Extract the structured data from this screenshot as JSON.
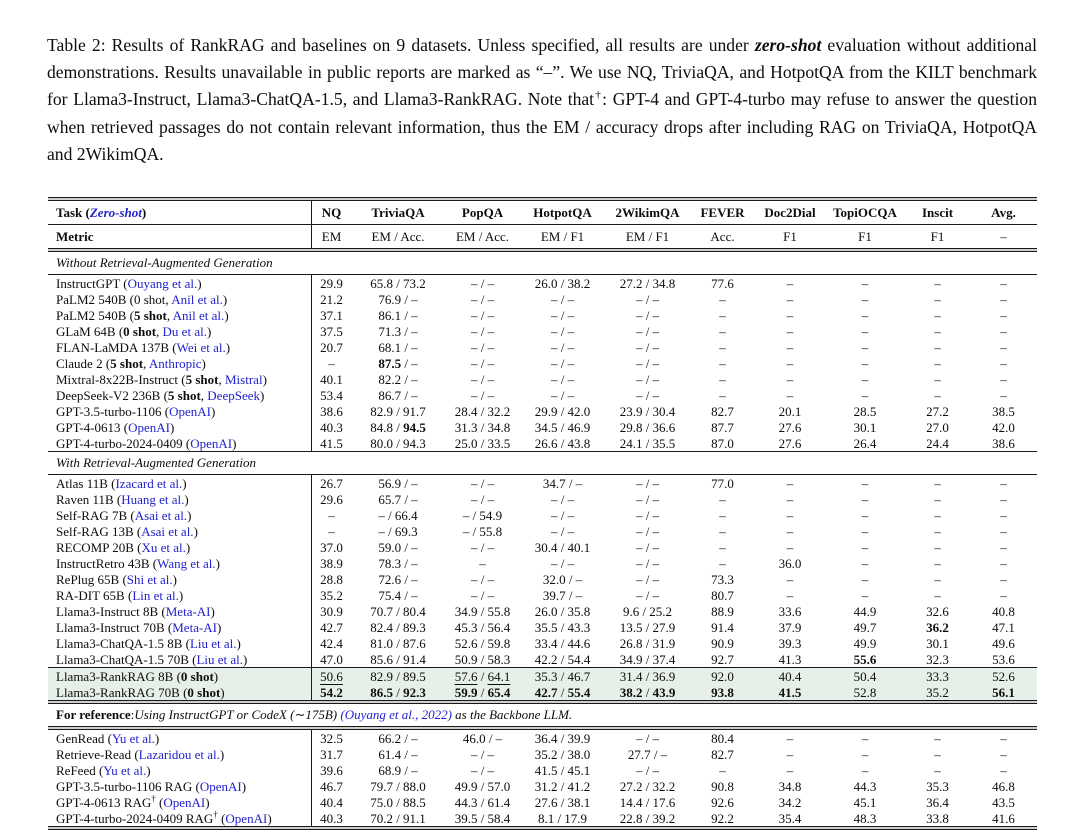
{
  "colors": {
    "citation_blue": "#2222cc",
    "highlight_green": "#e6efe8",
    "rule_black": "#1a1a1a"
  },
  "caption": {
    "segments": [
      {
        "text": "Table 2: Results of RankRAG and baselines on 9 datasets. Unless specified, all results are under ",
        "style": "normal"
      },
      {
        "text": "zero-shot",
        "style": "bolditalic"
      },
      {
        "text": " evaluation without additional demonstrations. Results unavailable in public reports are marked as “–”. We use NQ, TriviaQA, and HotpotQA from the KILT benchmark for Llama3-Instruct, Llama3-ChatQA-1.5, and Llama3-RankRAG. Note that",
        "style": "normal"
      },
      {
        "text": "†",
        "style": "sup"
      },
      {
        "text": ": GPT-4 and GPT-4-turbo may refuse to answer the question when retrieved passages do not contain relevant information, thus the EM / accuracy drops after including RAG on TriviaQA, HotpotQA and 2WikimQA.",
        "style": "normal"
      }
    ]
  },
  "table": {
    "header": {
      "task": "Task ([[//Zero-shot//]])",
      "cols": [
        "NQ",
        "TriviaQA",
        "PopQA",
        "HotpotQA",
        "2WikimQA",
        "FEVER",
        "Doc2Dial",
        "TopiOCQA",
        "Inscit",
        "Avg."
      ]
    },
    "metric": {
      "task": "Metric",
      "cols": [
        "EM",
        "EM / Acc.",
        "EM / Acc.",
        "EM / F1",
        "EM / F1",
        "Acc.",
        "F1",
        "F1",
        "F1",
        "–"
      ]
    },
    "groups": [
      {
        "band": "//Without Retrieval-Augmented Generation//",
        "band_rule_below": "thin",
        "highlight": false,
        "rows_rule_below": "thin",
        "rows": [
          {
            "model": "InstructGPT ([[Ouyang et al.]])",
            "cells": [
              "29.9",
              "65.8 / 73.2",
              "– / –",
              "26.0 / 38.2",
              "27.2 / 34.8",
              "77.6",
              "–",
              "–",
              "–",
              "–"
            ]
          },
          {
            "model": "PaLM2 540B (0 shot, [[Anil et al.]])",
            "cells": [
              "21.2",
              "76.9 / –",
              "– / –",
              "– / –",
              "– / –",
              "–",
              "–",
              "–",
              "–",
              "–"
            ]
          },
          {
            "model": "PaLM2 540B (**5 shot**, [[Anil et al.]])",
            "cells": [
              "37.1",
              "86.1 / –",
              "– / –",
              "– / –",
              "– / –",
              "–",
              "–",
              "–",
              "–",
              "–"
            ]
          },
          {
            "model": "GLaM 64B  (**0 shot**, [[Du et al.]])",
            "cells": [
              "37.5",
              "71.3 / –",
              "– / –",
              "– / –",
              "– / –",
              "–",
              "–",
              "–",
              "–",
              "–"
            ]
          },
          {
            "model": "FLAN-LaMDA 137B ([[Wei et al.]])",
            "cells": [
              "20.7",
              "68.1 / –",
              "– / –",
              "– / –",
              "– / –",
              "–",
              "–",
              "–",
              "–",
              "–"
            ]
          },
          {
            "model": "Claude 2 (**5 shot**, [[Anthropic]])",
            "cells": [
              "–",
              "**87.5** / –",
              "– / –",
              "– / –",
              "– / –",
              "–",
              "–",
              "–",
              "–",
              "–"
            ]
          },
          {
            "model": "Mixtral-8x22B-Instruct (**5 shot**, [[Mistral]])",
            "cells": [
              "40.1",
              "82.2 / –",
              "– / –",
              "– / –",
              "– / –",
              "–",
              "–",
              "–",
              "–",
              "–"
            ]
          },
          {
            "model": "DeepSeek-V2 236B (**5 shot**, [[DeepSeek]])",
            "cells": [
              "53.4",
              "86.7 / –",
              "– / –",
              "– / –",
              "– / –",
              "–",
              "–",
              "–",
              "–",
              "–"
            ]
          },
          {
            "model": "GPT-3.5-turbo-1106 ([[OpenAI]])",
            "cells": [
              "38.6",
              "82.9 / 91.7",
              "28.4 / 32.2",
              "29.9 / 42.0",
              "23.9 / 30.4",
              "82.7",
              "20.1",
              "28.5",
              "27.2",
              "38.5"
            ]
          },
          {
            "model": "GPT-4-0613 ([[OpenAI]])",
            "cells": [
              "40.3",
              "84.8 / **94.5**",
              "31.3 / 34.8",
              "34.5 / 46.9",
              "29.8 / 36.6",
              "87.7",
              "27.6",
              "30.1",
              "27.0",
              "42.0"
            ]
          },
          {
            "model": "GPT-4-turbo-2024-0409 ([[OpenAI]])",
            "cells": [
              "41.5",
              "80.0 / 94.3",
              "25.0 / 33.5",
              "26.6 / 43.8",
              "24.1 / 35.5",
              "87.0",
              "27.6",
              "26.4",
              "24.4",
              "38.6"
            ]
          }
        ]
      },
      {
        "band": "//With Retrieval-Augmented Generation//",
        "band_rule_below": "thin",
        "highlight": false,
        "rows_rule_below": "thin",
        "rows": [
          {
            "model": "Atlas 11B ([[Izacard et al.]])",
            "cells": [
              "26.7",
              "56.9 / –",
              "– / –",
              "34.7 / –",
              "– / –",
              "77.0",
              "–",
              "–",
              "–",
              "–"
            ]
          },
          {
            "model": "Raven 11B ([[Huang et al.]])",
            "cells": [
              "29.6",
              "65.7 / –",
              "– / –",
              "– / –",
              "– / –",
              "–",
              "–",
              "–",
              "–",
              "–"
            ]
          },
          {
            "model": "Self-RAG 7B ([[Asai et al.]])",
            "cells": [
              "–",
              "– / 66.4",
              "– / 54.9",
              "– / –",
              "– / –",
              "–",
              "–",
              "–",
              "–",
              "–"
            ]
          },
          {
            "model": "Self-RAG 13B ([[Asai et al.]])",
            "cells": [
              "–",
              "– / 69.3",
              "– / 55.8",
              "– / –",
              "– / –",
              "–",
              "–",
              "–",
              "–",
              "–"
            ]
          },
          {
            "model": "RECOMP 20B ([[Xu et al.]])",
            "cells": [
              "37.0",
              "59.0 / –",
              "– / –",
              "30.4 / 40.1",
              "– / –",
              "–",
              "–",
              "–",
              "–",
              "–"
            ]
          },
          {
            "model": "InstructRetro 43B ([[Wang et al.]])",
            "cells": [
              "38.9",
              "78.3 / –",
              "–",
              "– / –",
              "– / –",
              "–",
              "36.0",
              "–",
              "–",
              "–"
            ]
          },
          {
            "model": "RePlug 65B ([[Shi et al.]])",
            "cells": [
              "28.8",
              "72.6 / –",
              "– / –",
              "32.0 / –",
              "– / –",
              "73.3",
              "–",
              "–",
              "–",
              "–"
            ]
          },
          {
            "model": "RA-DIT 65B ([[Lin et al.]])",
            "cells": [
              "35.2",
              "75.4 / –",
              "– / –",
              "39.7 / –",
              "– / –",
              "80.7",
              "–",
              "–",
              "–",
              "–"
            ]
          },
          {
            "model": "Llama3-Instruct 8B ([[Meta-AI]])",
            "cells": [
              "30.9",
              "70.7 / 80.4",
              "34.9 / 55.8",
              "26.0 / 35.8",
              "9.6 / 25.2",
              "88.9",
              "33.6",
              "44.9",
              "32.6",
              "40.8"
            ]
          },
          {
            "model": "Llama3-Instruct 70B ([[Meta-AI]])",
            "cells": [
              "42.7",
              "82.4 / 89.3",
              "45.3 / 56.4",
              "35.5 / 43.3",
              "13.5 / 27.9",
              "91.4",
              "37.9",
              "49.7",
              "**36.2**",
              "47.1"
            ]
          },
          {
            "model": "Llama3-ChatQA-1.5 8B ([[Liu et al.]])",
            "cells": [
              "42.4",
              "81.0 / 87.6",
              "52.6 / 59.8",
              "33.4 / 44.6",
              "26.8 / 31.9",
              "90.9",
              "39.3",
              "49.9",
              "30.1",
              "49.6"
            ]
          },
          {
            "model": "Llama3-ChatQA-1.5 70B ([[Liu et al.]])",
            "cells": [
              "47.0",
              "__85.6__ / __91.4__",
              "50.9 / 58.3",
              "__42.2__ / __54.4__",
              "__34.9__ / __37.4__",
              "__92.7__",
              "__41.3__",
              "**55.6**",
              "32.3",
              "__53.6__"
            ]
          }
        ]
      },
      {
        "band": null,
        "band_rule_below": "none",
        "highlight": true,
        "rows_rule_below": "double",
        "rows": [
          {
            "model": "Llama3-RankRAG 8B (**0 shot**)",
            "cells": [
              "__50.6__",
              "82.9 / 89.5",
              "__57.6__ / __64.1__",
              "35.3 / 46.7",
              "31.4 / 36.9",
              "92.0",
              "40.4",
              "50.4",
              "33.3",
              "52.6"
            ]
          },
          {
            "model": "Llama3-RankRAG 70B (**0 shot**)",
            "cells": [
              "**54.2**",
              "**86.5** / **92.3**",
              "**59.9** / **65.4**",
              "**42.7** / **55.4**",
              "**38.2** / **43.9**",
              "**93.8**",
              "**41.5**",
              "__52.8__",
              "__35.2__",
              "**56.1**"
            ]
          }
        ]
      },
      {
        "band": "**For reference**: //Using InstructGPT or CodeX (∼175B) [[(Ouyang et al., 2022)]] as the Backbone LLM.//",
        "band_rule_below": "double",
        "highlight": false,
        "rows_rule_below": "double",
        "rows": [
          {
            "model": "GenRead ([[Yu et al.]])",
            "cells": [
              "32.5",
              "66.2 / –",
              "46.0 / –",
              "36.4 / 39.9",
              "– / –",
              "80.4",
              "–",
              "–",
              "–",
              "–"
            ]
          },
          {
            "model": "Retrieve-Read ([[Lazaridou et al.]])",
            "cells": [
              "31.7",
              "61.4 / –",
              "– / –",
              "35.2 / 38.0",
              "27.7 / –",
              "82.7",
              "–",
              "–",
              "–",
              "–"
            ]
          },
          {
            "model": "ReFeed ([[Yu et al.]])",
            "cells": [
              "39.6",
              "68.9 / –",
              "– / –",
              "41.5 / 45.1",
              "– / –",
              "–",
              "–",
              "–",
              "–",
              "–"
            ]
          },
          {
            "model": "GPT-3.5-turbo-1106 RAG ([[OpenAI]])",
            "cells": [
              "46.7",
              "79.7 / 88.0",
              "49.9 / 57.0",
              "31.2 / 41.2",
              "27.2 / 32.2",
              "90.8",
              "34.8",
              "44.3",
              "35.3",
              "46.8"
            ]
          },
          {
            "model": "GPT-4-0613 RAG^^†^^ ([[OpenAI]])",
            "cells": [
              "40.4",
              "75.0 / 88.5",
              "44.3 / 61.4",
              "27.6 / 38.1",
              "14.4 / 17.6",
              "92.6",
              "34.2",
              "45.1",
              "36.4",
              "43.5"
            ]
          },
          {
            "model": "GPT-4-turbo-2024-0409 RAG^^†^^ ([[OpenAI]])",
            "cells": [
              "40.3",
              "70.2 / 91.1",
              "39.5 / 58.4",
              "8.1 / 17.9",
              "22.8 / 39.2",
              "92.2",
              "35.4",
              "48.3",
              "33.8",
              "41.6"
            ]
          }
        ]
      }
    ]
  }
}
